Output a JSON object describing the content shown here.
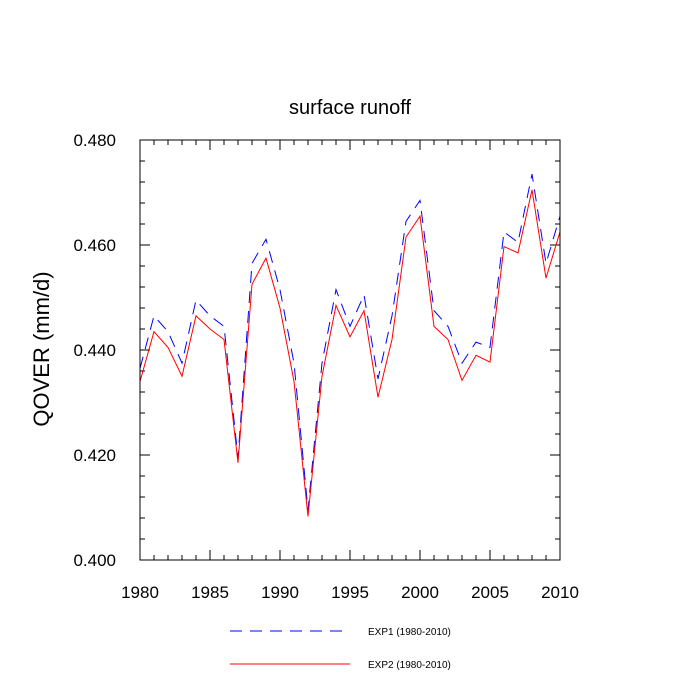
{
  "chart_data": {
    "type": "line",
    "title": "surface runoff",
    "xlabel": "",
    "ylabel": "QOVER  (mm/d)",
    "xlim": [
      1980,
      2010
    ],
    "ylim": [
      0.4,
      0.48
    ],
    "x_ticks": [
      1980,
      1985,
      1990,
      1995,
      2000,
      2005,
      2010
    ],
    "y_ticks": [
      "0.400",
      "0.420",
      "0.440",
      "0.460",
      "0.480"
    ],
    "x": [
      1980,
      1981,
      1982,
      1983,
      1984,
      1985,
      1986,
      1987,
      1988,
      1989,
      1990,
      1991,
      1992,
      1993,
      1994,
      1995,
      1996,
      1997,
      1998,
      1999,
      2000,
      2001,
      2002,
      2003,
      2004,
      2005,
      2006,
      2007,
      2008,
      2009,
      2010
    ],
    "series": [
      {
        "name": "EXP1 (1980-2010)",
        "color": "#0000ff",
        "style": "dashed",
        "values": [
          0.4365,
          0.4465,
          0.4435,
          0.4375,
          0.4495,
          0.4465,
          0.4445,
          0.4195,
          0.4565,
          0.4611,
          0.4515,
          0.4375,
          0.4095,
          0.4375,
          0.4515,
          0.4445,
          0.4505,
          0.4345,
          0.4465,
          0.4645,
          0.4685,
          0.4475,
          0.4445,
          0.4375,
          0.4415,
          0.4405,
          0.4625,
          0.4605,
          0.4735,
          0.4565,
          0.4655
        ]
      },
      {
        "name": "EXP2 (1980-2010)",
        "color": "#ff0000",
        "style": "solid",
        "values": [
          0.434,
          0.4435,
          0.4405,
          0.435,
          0.4465,
          0.444,
          0.442,
          0.4185,
          0.4525,
          0.4575,
          0.448,
          0.434,
          0.4083,
          0.435,
          0.4485,
          0.4425,
          0.4475,
          0.431,
          0.442,
          0.4615,
          0.4655,
          0.4445,
          0.442,
          0.4342,
          0.439,
          0.4377,
          0.4597,
          0.4585,
          0.4705,
          0.4537,
          0.4625
        ]
      }
    ],
    "legend_position": "bottom"
  }
}
